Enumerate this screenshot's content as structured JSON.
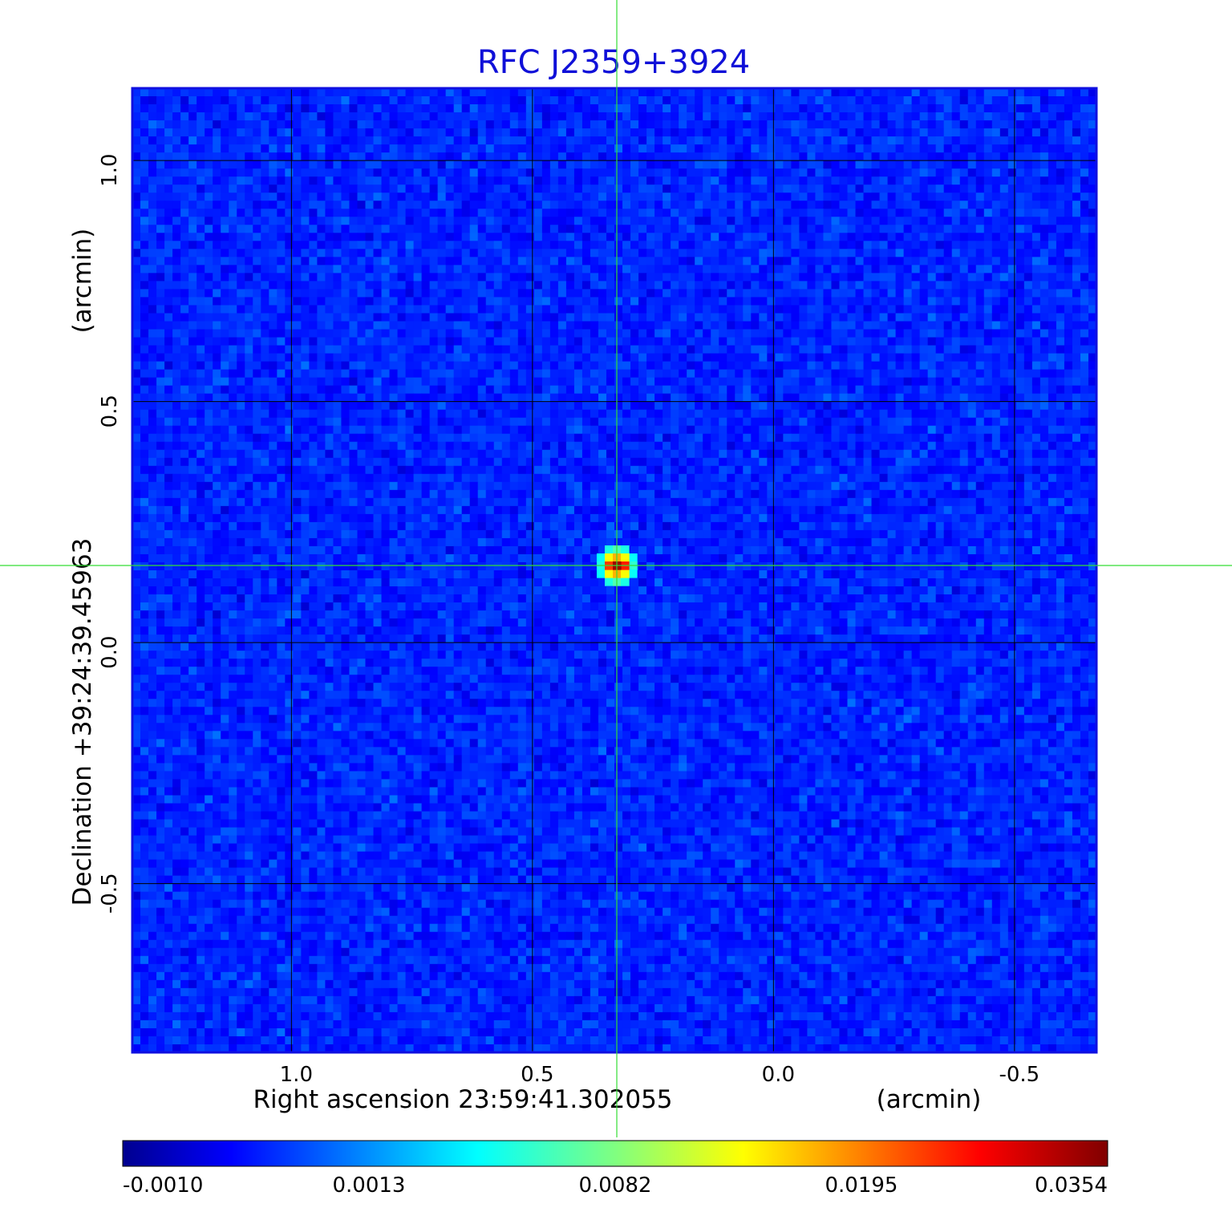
{
  "chart_data": {
    "type": "heatmap",
    "title": "RFC J2359+3924",
    "xlabel": "Right ascension  23:59:41.302055",
    "xunit": "(arcmin)",
    "ylabel": "Declination  +39:24:39.45963",
    "yunit": "(arcmin)",
    "xlim": [
      1.33,
      -0.67
    ],
    "ylim": [
      -0.85,
      1.15
    ],
    "x_ticks": [
      1.0,
      0.5,
      0.0,
      -0.5
    ],
    "x_tick_labels": [
      "1.0",
      "0.5",
      "0.0",
      "-0.5"
    ],
    "y_ticks": [
      1.0,
      0.5,
      0.0,
      -0.5
    ],
    "y_tick_labels": [
      "1.0",
      "0.5",
      "0.0",
      "-0.5"
    ],
    "grid": true,
    "crosshair": {
      "x": 0.325,
      "y": 0.16
    },
    "source_peak": {
      "x": 0.325,
      "y": 0.16,
      "value": 0.0354
    },
    "colormap": "jet",
    "colorbar": {
      "tick_labels": [
        "-0.0010",
        "0.0013",
        "0.0082",
        "0.0195",
        "0.0354"
      ],
      "range": [
        -0.001,
        0.0354
      ]
    },
    "colors": {
      "title": "#1010d8",
      "frame": "#1010e0",
      "grid": "#000000",
      "crosshair": "#33dd33",
      "background_field": "#1a66ee"
    }
  }
}
